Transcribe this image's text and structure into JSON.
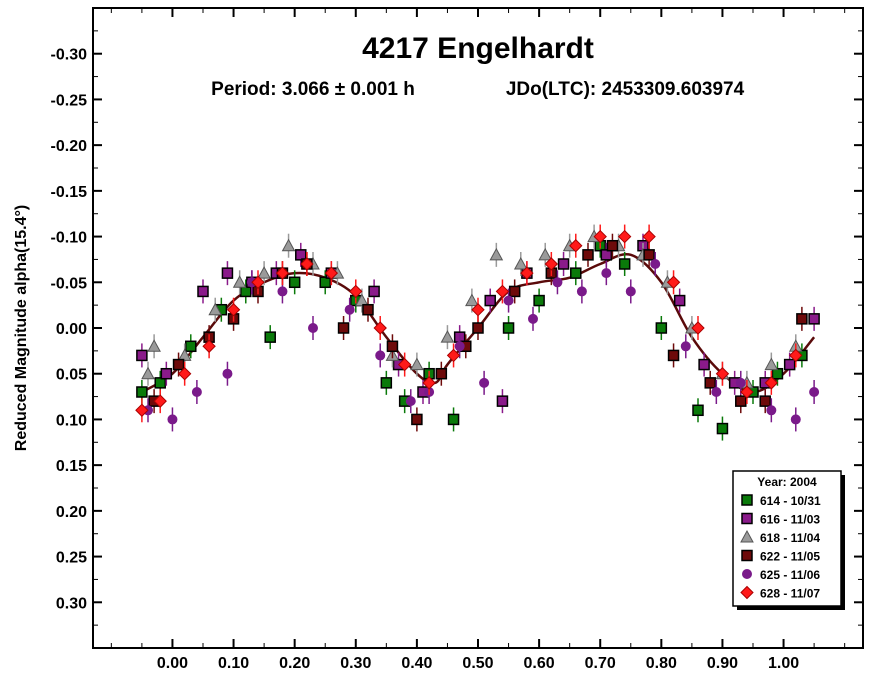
{
  "chart_data": {
    "type": "scatter",
    "title": "4217 Engelhardt",
    "subtitle_period": "Period: 3.066 ± 0.001 h",
    "subtitle_epoch": "JDo(LTC): 2453309.603974",
    "ylabel": "Reduced Magnitude alpha(15.4°)",
    "xlabel": "",
    "xlim": [
      -0.13,
      1.13
    ],
    "ylim": [
      0.35,
      -0.35
    ],
    "y_inverted": true,
    "x_ticks": [
      "0.00",
      "0.10",
      "0.20",
      "0.30",
      "0.40",
      "0.50",
      "0.60",
      "0.70",
      "0.80",
      "0.90",
      "1.00"
    ],
    "x_tick_values": [
      0,
      0.1,
      0.2,
      0.3,
      0.4,
      0.5,
      0.6,
      0.7,
      0.8,
      0.9,
      1.0
    ],
    "y_ticks": [
      "-0.30",
      "-0.25",
      "-0.20",
      "-0.15",
      "-0.10",
      "-0.05",
      "0.00",
      "0.05",
      "0.10",
      "0.15",
      "0.20",
      "0.25",
      "0.30"
    ],
    "y_tick_values": [
      -0.3,
      -0.25,
      -0.2,
      -0.15,
      -0.1,
      -0.05,
      0,
      0.05,
      0.1,
      0.15,
      0.2,
      0.25,
      0.3
    ],
    "legend": {
      "title": "Year: 2004",
      "position": "bottom-right",
      "entries": [
        {
          "label": "614 - 10/31",
          "marker": "square",
          "color": "#0a7a0a"
        },
        {
          "label": "616 - 11/03",
          "marker": "square",
          "color": "#8a1a8a"
        },
        {
          "label": "618 - 11/04",
          "marker": "triangle",
          "color": "#9a9a9a"
        },
        {
          "label": "622 - 11/05",
          "marker": "square",
          "color": "#6e0a0a"
        },
        {
          "label": "625 - 11/06",
          "marker": "circle",
          "color": "#7a1a8a"
        },
        {
          "label": "628 - 11/07",
          "marker": "diamond",
          "color": "#ff1a1a"
        }
      ]
    },
    "fit_curve": {
      "x": [
        -0.05,
        0.0,
        0.05,
        0.1,
        0.15,
        0.2,
        0.25,
        0.3,
        0.35,
        0.4,
        0.43,
        0.45,
        0.5,
        0.55,
        0.6,
        0.65,
        0.7,
        0.75,
        0.8,
        0.85,
        0.9,
        0.95,
        1.0,
        1.05
      ],
      "y": [
        0.07,
        0.05,
        0.01,
        -0.03,
        -0.05,
        -0.06,
        -0.055,
        -0.035,
        0.01,
        0.05,
        0.06,
        0.04,
        0.0,
        -0.04,
        -0.05,
        -0.055,
        -0.07,
        -0.08,
        -0.05,
        0.01,
        0.05,
        0.07,
        0.05,
        0.01
      ]
    },
    "series": [
      {
        "name": "614 - 10/31",
        "x": [
          -0.05,
          -0.02,
          0.03,
          0.08,
          0.12,
          0.16,
          0.2,
          0.25,
          0.3,
          0.35,
          0.38,
          0.42,
          0.46,
          0.55,
          0.6,
          0.66,
          0.7,
          0.74,
          0.8,
          0.86,
          0.9,
          0.95,
          0.99,
          1.03
        ],
        "y": [
          0.07,
          0.06,
          0.02,
          -0.02,
          -0.04,
          0.01,
          -0.05,
          -0.05,
          -0.03,
          0.06,
          0.08,
          0.05,
          0.1,
          0.0,
          -0.03,
          -0.06,
          -0.09,
          -0.07,
          0.0,
          0.09,
          0.11,
          0.07,
          0.05,
          0.03
        ]
      },
      {
        "name": "616 - 11/03",
        "x": [
          -0.05,
          -0.01,
          0.05,
          0.09,
          0.13,
          0.17,
          0.21,
          0.26,
          0.33,
          0.37,
          0.41,
          0.47,
          0.52,
          0.54,
          0.58,
          0.64,
          0.71,
          0.77,
          0.83,
          0.87,
          0.92,
          0.97,
          1.01,
          1.05
        ],
        "y": [
          0.03,
          0.05,
          -0.04,
          -0.06,
          -0.05,
          -0.06,
          -0.08,
          -0.06,
          -0.04,
          0.04,
          0.07,
          0.01,
          -0.03,
          0.08,
          -0.06,
          -0.07,
          -0.08,
          -0.09,
          -0.03,
          0.04,
          0.06,
          0.06,
          0.04,
          -0.01
        ]
      },
      {
        "name": "618 - 11/04",
        "x": [
          -0.04,
          -0.03,
          0.02,
          0.07,
          0.11,
          0.15,
          0.19,
          0.23,
          0.27,
          0.31,
          0.36,
          0.4,
          0.45,
          0.49,
          0.53,
          0.57,
          0.61,
          0.65,
          0.69,
          0.73,
          0.77,
          0.81,
          0.85,
          0.9,
          0.94,
          0.98,
          1.02
        ],
        "y": [
          0.05,
          0.02,
          0.03,
          -0.02,
          -0.05,
          -0.06,
          -0.09,
          -0.07,
          -0.06,
          -0.03,
          0.03,
          0.04,
          0.01,
          -0.03,
          -0.08,
          -0.07,
          -0.08,
          -0.09,
          -0.1,
          -0.09,
          -0.08,
          -0.05,
          0.0,
          0.05,
          0.06,
          0.04,
          0.02
        ]
      },
      {
        "name": "622 - 11/05",
        "x": [
          -0.03,
          0.01,
          0.06,
          0.1,
          0.14,
          0.18,
          0.22,
          0.28,
          0.32,
          0.36,
          0.4,
          0.44,
          0.48,
          0.5,
          0.56,
          0.62,
          0.68,
          0.72,
          0.78,
          0.82,
          0.88,
          0.93,
          0.97,
          1.03
        ],
        "y": [
          0.08,
          0.04,
          0.01,
          -0.01,
          -0.04,
          -0.06,
          -0.07,
          0.0,
          -0.02,
          0.02,
          0.1,
          0.05,
          0.02,
          0.0,
          -0.04,
          -0.06,
          -0.08,
          -0.09,
          -0.08,
          0.03,
          0.06,
          0.08,
          0.08,
          -0.01
        ]
      },
      {
        "name": "625 - 11/06",
        "x": [
          -0.04,
          0.0,
          0.04,
          0.09,
          0.13,
          0.18,
          0.23,
          0.29,
          0.34,
          0.39,
          0.42,
          0.47,
          0.51,
          0.55,
          0.59,
          0.63,
          0.67,
          0.71,
          0.75,
          0.79,
          0.84,
          0.89,
          0.93,
          0.98,
          1.02,
          1.05
        ],
        "y": [
          0.09,
          0.1,
          0.07,
          0.05,
          -0.05,
          -0.04,
          0.0,
          -0.02,
          0.03,
          0.08,
          0.07,
          0.02,
          0.06,
          -0.03,
          -0.01,
          -0.05,
          -0.04,
          -0.06,
          -0.04,
          -0.07,
          0.02,
          0.07,
          0.06,
          0.09,
          0.1,
          0.07
        ]
      },
      {
        "name": "628 - 11/07",
        "x": [
          -0.05,
          -0.02,
          0.02,
          0.06,
          0.1,
          0.14,
          0.18,
          0.22,
          0.26,
          0.3,
          0.34,
          0.38,
          0.42,
          0.46,
          0.5,
          0.54,
          0.58,
          0.62,
          0.66,
          0.7,
          0.74,
          0.78,
          0.82,
          0.86,
          0.9,
          0.94,
          0.98,
          1.02
        ],
        "y": [
          0.09,
          0.08,
          0.05,
          0.02,
          -0.02,
          -0.05,
          -0.06,
          -0.07,
          -0.06,
          -0.04,
          0.0,
          0.04,
          0.06,
          0.03,
          -0.02,
          -0.04,
          -0.06,
          -0.07,
          -0.09,
          -0.1,
          -0.1,
          -0.1,
          -0.05,
          0.0,
          0.05,
          0.07,
          0.06,
          0.03
        ]
      }
    ]
  }
}
